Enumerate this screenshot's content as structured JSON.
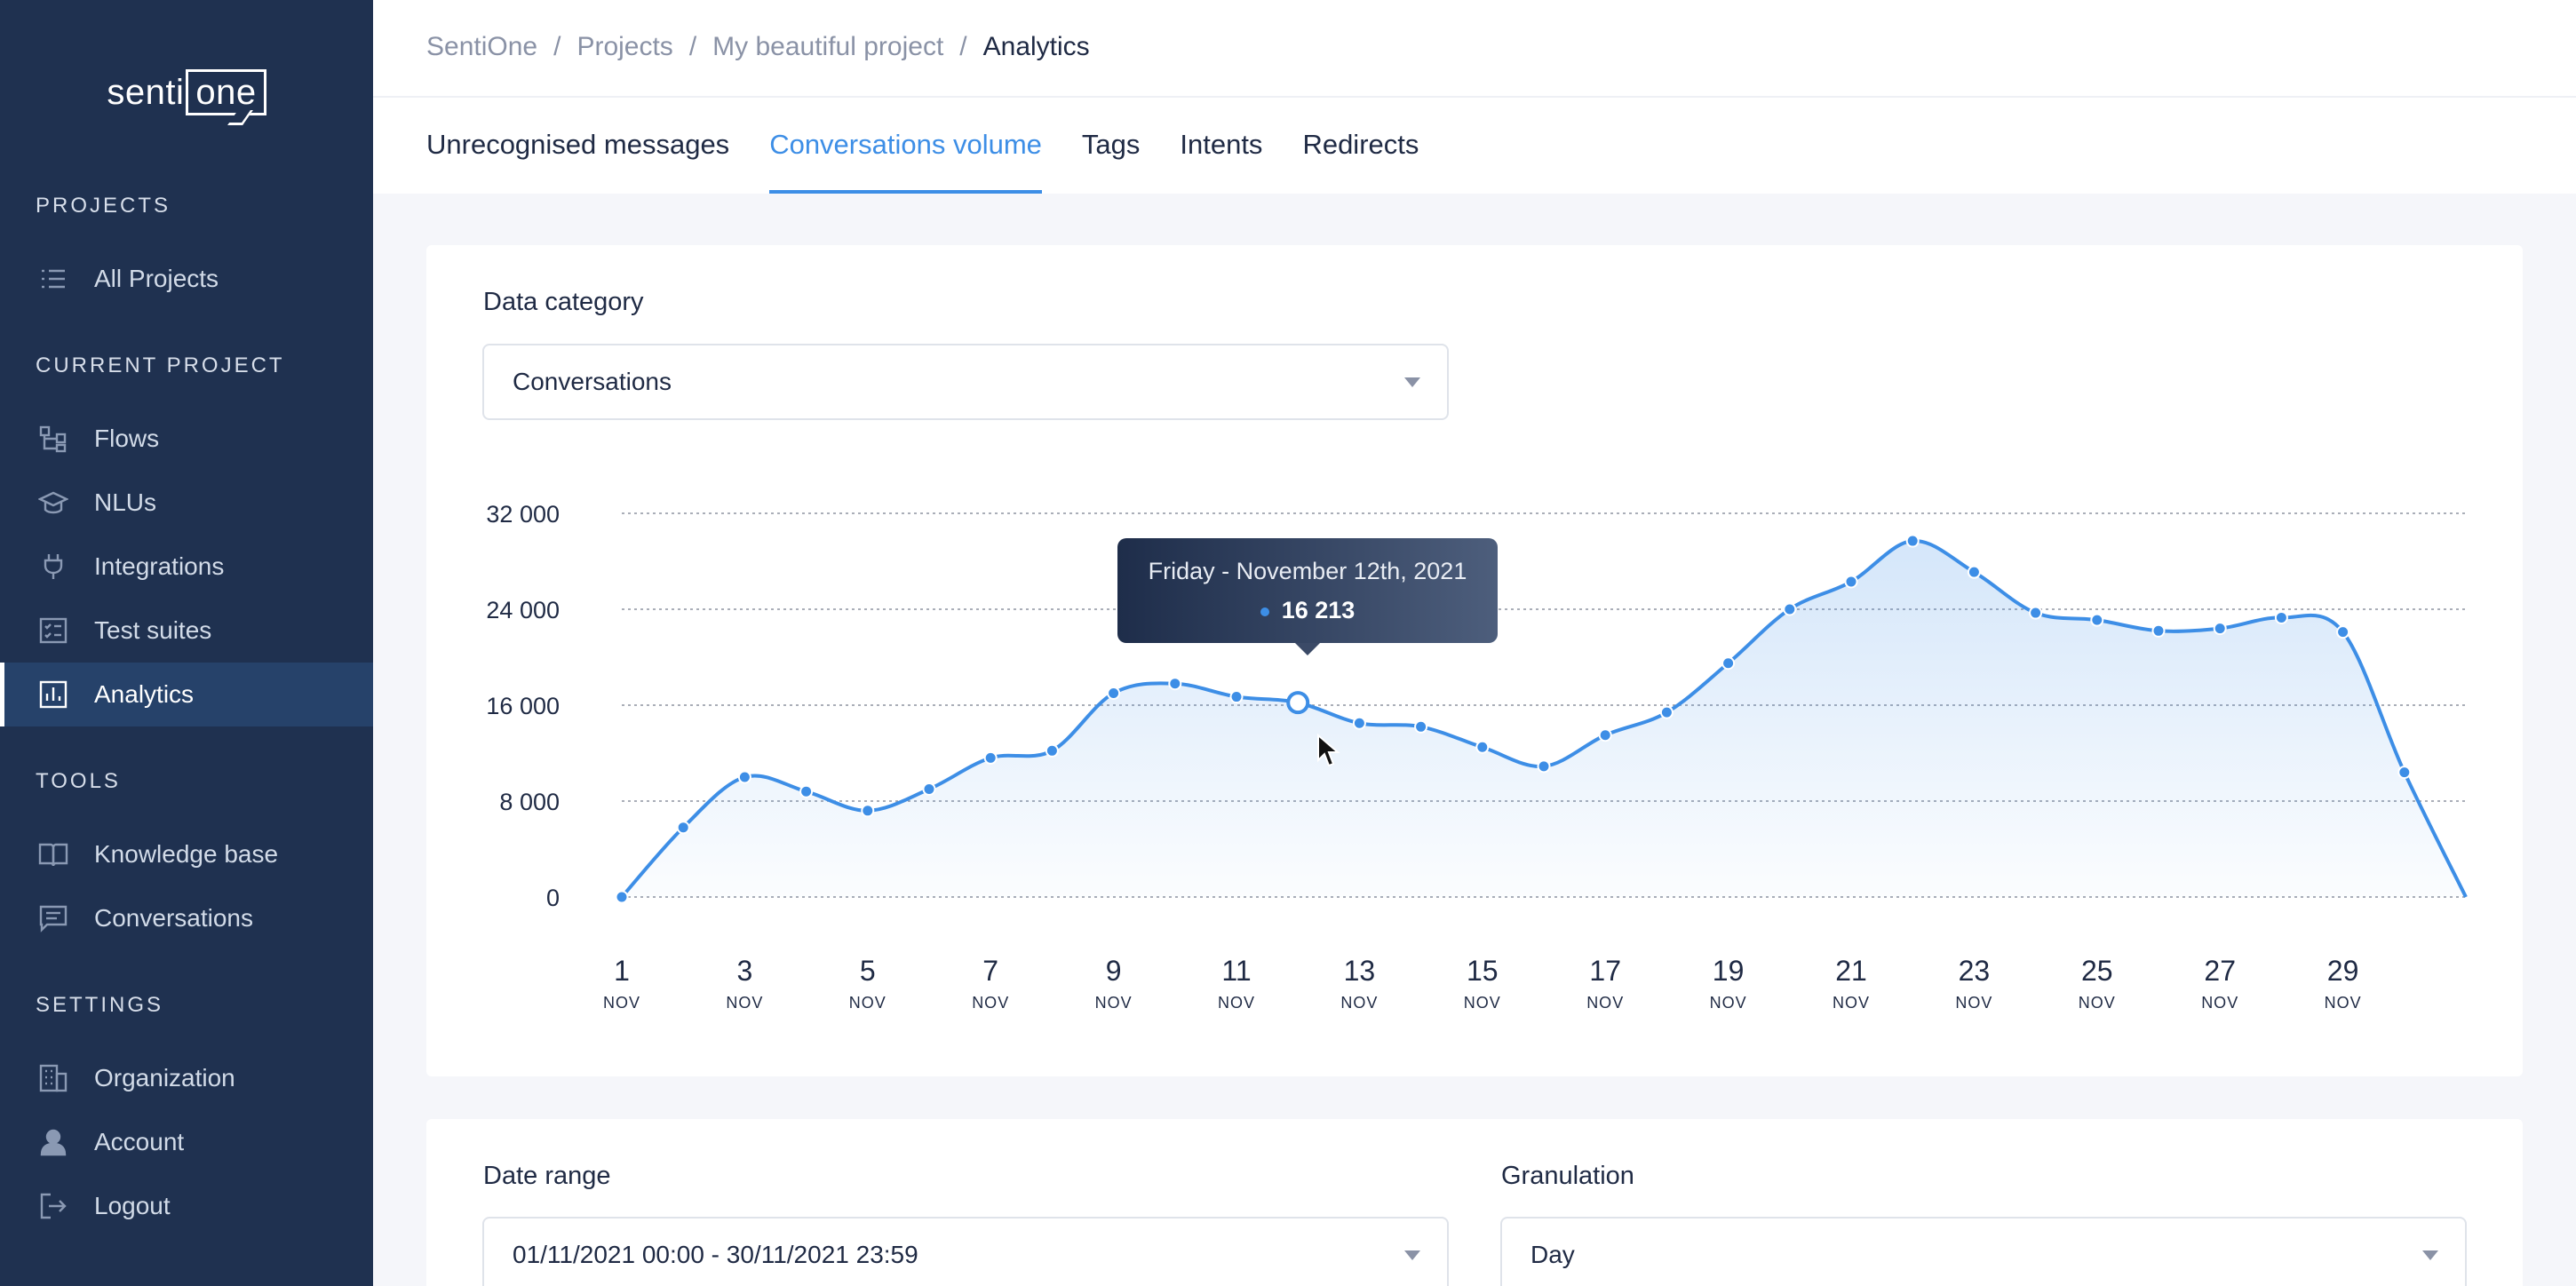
{
  "app": {
    "logo_text": "senti",
    "logo_box": "one"
  },
  "sidebar": {
    "sections": [
      {
        "title": "PROJECTS",
        "items": [
          {
            "label": "All Projects",
            "icon": "list-icon"
          }
        ]
      },
      {
        "title": "CURRENT PROJECT",
        "items": [
          {
            "label": "Flows",
            "icon": "flows-icon"
          },
          {
            "label": "NLUs",
            "icon": "graduation-cap-icon"
          },
          {
            "label": "Integrations",
            "icon": "plug-icon"
          },
          {
            "label": "Test suites",
            "icon": "checklist-icon"
          },
          {
            "label": "Analytics",
            "icon": "bar-chart-icon",
            "active": true
          }
        ]
      },
      {
        "title": "TOOLS",
        "items": [
          {
            "label": "Knowledge base",
            "icon": "book-icon"
          },
          {
            "label": "Conversations",
            "icon": "chat-icon"
          }
        ]
      },
      {
        "title": "SETTINGS",
        "items": [
          {
            "label": "Organization",
            "icon": "building-icon"
          },
          {
            "label": "Account",
            "icon": "user-icon"
          },
          {
            "label": "Logout",
            "icon": "logout-icon"
          }
        ]
      }
    ]
  },
  "breadcrumb": [
    "SentiOne",
    "Projects",
    "My beautiful project",
    "Analytics"
  ],
  "breadcrumb_separator": "/",
  "tabs": [
    {
      "label": "Unrecognised messages"
    },
    {
      "label": "Conversations volume",
      "active": true
    },
    {
      "label": "Tags"
    },
    {
      "label": "Intents"
    },
    {
      "label": "Redirects"
    }
  ],
  "data_category": {
    "label": "Data category",
    "value": "Conversations"
  },
  "tooltip": {
    "date": "Friday - November 12th, 2021",
    "value": "16 213"
  },
  "date_range": {
    "label": "Date range",
    "value": "01/11/2021 00:00 - 30/11/2021 23:59"
  },
  "granulation": {
    "label": "Granulation",
    "value": "Day"
  },
  "colors": {
    "accent": "#3d8ee6",
    "sidebar": "#1f3150"
  },
  "chart_data": {
    "type": "area",
    "x": [
      1,
      2,
      3,
      4,
      5,
      6,
      7,
      8,
      9,
      10,
      11,
      12,
      13,
      14,
      15,
      16,
      17,
      18,
      19,
      20,
      21,
      22,
      23,
      24,
      25,
      26,
      27,
      28,
      29,
      30,
      31
    ],
    "x_tick_labels": [
      "1",
      "3",
      "5",
      "7",
      "9",
      "11",
      "13",
      "15",
      "17",
      "19",
      "21",
      "23",
      "25",
      "27",
      "29"
    ],
    "x_tick_values": [
      1,
      3,
      5,
      7,
      9,
      11,
      13,
      15,
      17,
      19,
      21,
      23,
      25,
      27,
      29
    ],
    "x_tick_sublabel": "NOV",
    "y_tick_labels": [
      "0",
      "8 000",
      "16 000",
      "24 000",
      "32 000"
    ],
    "y_tick_values": [
      0,
      8000,
      16000,
      24000,
      32000
    ],
    "series": [
      {
        "values": [
          0,
          5800,
          10000,
          8800,
          7200,
          9000,
          11600,
          12200,
          17000,
          17800,
          16700,
          16213,
          14500,
          14200,
          12500,
          10900,
          13500,
          15400,
          19500,
          24000,
          26300,
          29700,
          27100,
          23700,
          23100,
          22200,
          22400,
          23300,
          22100,
          10400,
          0
        ]
      }
    ],
    "ylim": [
      0,
      32000
    ],
    "grid": true
  }
}
